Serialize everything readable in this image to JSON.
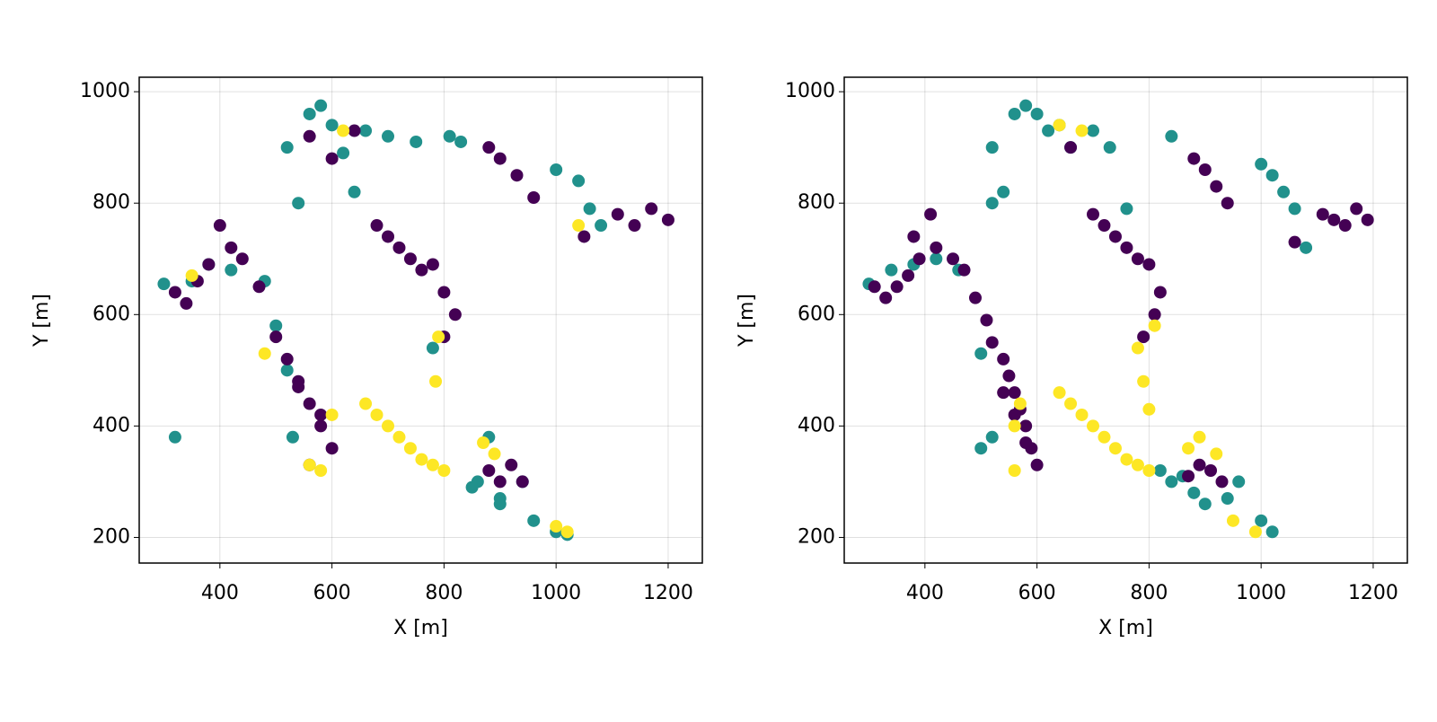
{
  "chart_data": [
    {
      "type": "scatter",
      "xlabel": "X [m]",
      "ylabel": "Y [m]",
      "xlim": [
        256,
        1261
      ],
      "ylim": [
        154,
        1026
      ],
      "xticks": [
        400,
        600,
        800,
        1000,
        1200
      ],
      "yticks": [
        200,
        400,
        600,
        800,
        1000
      ],
      "grid": true,
      "series": [
        {
          "color": "#21918c",
          "x": [
            300,
            350,
            380,
            420,
            480,
            500,
            520,
            530,
            560,
            580,
            600,
            620,
            640,
            860,
            880,
            900,
            940,
            960,
            1000,
            1020,
            1000,
            1040,
            1060,
            1080,
            830,
            520,
            540,
            660,
            700,
            750,
            810,
            850,
            900,
            320,
            780
          ],
          "values": [
            655,
            660,
            690,
            680,
            660,
            580,
            500,
            380,
            960,
            975,
            940,
            890,
            820,
            300,
            380,
            270,
            300,
            230,
            210,
            205,
            860,
            840,
            790,
            760,
            910,
            900,
            800,
            930,
            920,
            910,
            920,
            290,
            260,
            380,
            540
          ]
        },
        {
          "color": "#440154",
          "x": [
            320,
            340,
            360,
            380,
            400,
            420,
            440,
            470,
            500,
            520,
            540,
            560,
            580,
            600,
            540,
            560,
            580,
            680,
            700,
            720,
            740,
            760,
            780,
            800,
            820,
            800,
            880,
            900,
            920,
            940,
            560,
            600,
            640,
            900,
            930,
            960,
            1110,
            1140,
            1170,
            1200,
            1050,
            880
          ],
          "values": [
            640,
            620,
            660,
            690,
            760,
            720,
            700,
            650,
            560,
            520,
            480,
            440,
            400,
            360,
            470,
            330,
            420,
            760,
            740,
            720,
            700,
            680,
            690,
            640,
            600,
            560,
            320,
            300,
            330,
            300,
            920,
            880,
            930,
            880,
            850,
            810,
            780,
            760,
            790,
            770,
            740,
            900
          ]
        },
        {
          "color": "#fde725",
          "x": [
            660,
            680,
            700,
            720,
            740,
            760,
            780,
            800,
            790,
            785,
            560,
            580,
            600,
            870,
            890,
            1040,
            1020,
            1000,
            620,
            480,
            350
          ],
          "values": [
            440,
            420,
            400,
            380,
            360,
            340,
            330,
            320,
            560,
            480,
            330,
            320,
            420,
            370,
            350,
            760,
            210,
            220,
            930,
            530,
            670
          ]
        }
      ]
    },
    {
      "type": "scatter",
      "xlabel": "X [m]",
      "ylabel": "Y [m]",
      "xlim": [
        256,
        1261
      ],
      "ylim": [
        154,
        1026
      ],
      "xticks": [
        400,
        600,
        800,
        1000,
        1200
      ],
      "yticks": [
        200,
        400,
        600,
        800,
        1000
      ],
      "grid": true,
      "series": [
        {
          "color": "#21918c",
          "x": [
            300,
            340,
            380,
            420,
            460,
            500,
            520,
            560,
            580,
            600,
            640,
            660,
            520,
            540,
            860,
            880,
            900,
            940,
            960,
            1000,
            1020,
            820,
            840,
            1000,
            1020,
            1040,
            1060,
            1080,
            840,
            520,
            500,
            760,
            620,
            700,
            730
          ],
          "values": [
            655,
            680,
            690,
            700,
            680,
            530,
            380,
            960,
            975,
            960,
            940,
            900,
            900,
            820,
            310,
            280,
            260,
            270,
            300,
            230,
            210,
            320,
            300,
            870,
            850,
            820,
            790,
            720,
            920,
            800,
            360,
            790,
            930,
            930,
            900
          ]
        },
        {
          "color": "#440154",
          "x": [
            310,
            330,
            350,
            370,
            390,
            410,
            380,
            420,
            450,
            470,
            490,
            510,
            520,
            540,
            550,
            560,
            570,
            580,
            590,
            600,
            540,
            560,
            580,
            700,
            720,
            740,
            760,
            780,
            800,
            820,
            810,
            790,
            870,
            890,
            910,
            930,
            880,
            900,
            920,
            940,
            1110,
            1130,
            1150,
            1170,
            1190,
            1060,
            660
          ],
          "values": [
            650,
            630,
            650,
            670,
            700,
            780,
            740,
            720,
            700,
            680,
            630,
            590,
            550,
            520,
            490,
            460,
            430,
            400,
            360,
            330,
            460,
            420,
            370,
            780,
            760,
            740,
            720,
            700,
            690,
            640,
            600,
            560,
            310,
            330,
            320,
            300,
            880,
            860,
            830,
            800,
            780,
            770,
            760,
            790,
            770,
            730,
            900
          ]
        },
        {
          "color": "#fde725",
          "x": [
            640,
            660,
            680,
            700,
            720,
            740,
            760,
            780,
            800,
            810,
            780,
            790,
            800,
            570,
            560,
            560,
            870,
            890,
            920,
            950,
            990,
            640,
            680
          ],
          "values": [
            460,
            440,
            420,
            400,
            380,
            360,
            340,
            330,
            320,
            580,
            540,
            480,
            430,
            440,
            400,
            320,
            360,
            380,
            350,
            230,
            210,
            940,
            930
          ]
        }
      ]
    }
  ]
}
